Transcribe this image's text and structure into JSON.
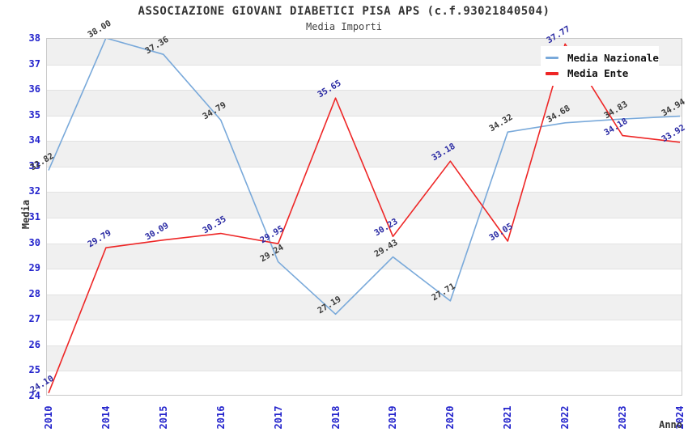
{
  "title": "ASSOCIAZIONE GIOVANI DIABETICI PISA APS (c.f.93021840504)",
  "subtitle": "Media Importi",
  "colors": {
    "background": "#ffffff",
    "band_gray": "#f0f0f0",
    "gridline": "#e2e2e2",
    "plot_border": "#c9c9c9",
    "tick_label_blue": "#2323cc",
    "title_gray": "#333333",
    "series_nazionale": "#79a9da",
    "series_ente": "#ee2626",
    "label_nazionale": "#3a3a3a",
    "label_ente": "#2929a3"
  },
  "chart_data": {
    "type": "line",
    "title": "ASSOCIAZIONE GIOVANI DIABETICI PISA APS (c.f.93021840504)",
    "subtitle": "Media Importi",
    "xlabel": "Anno",
    "ylabel": "Media",
    "categories": [
      "2010",
      "2014",
      "2015",
      "2016",
      "2017",
      "2018",
      "2019",
      "2020",
      "2021",
      "2022",
      "2023",
      "2024"
    ],
    "series": [
      {
        "name": "Media Nazionale",
        "color": "#79a9da",
        "label_color": "#3a3a3a",
        "values": [
          32.82,
          38.0,
          37.36,
          34.79,
          29.24,
          27.19,
          29.43,
          27.71,
          34.32,
          34.68,
          34.83,
          34.94
        ]
      },
      {
        "name": "Media Ente",
        "color": "#ee2626",
        "label_color": "#2929a3",
        "values": [
          24.1,
          29.79,
          30.09,
          30.35,
          29.95,
          35.65,
          30.23,
          33.18,
          30.05,
          37.77,
          34.18,
          33.92
        ]
      }
    ],
    "ylim": [
      24,
      38
    ],
    "ytick_step": 1,
    "grid": "horizontal-bands-alternating",
    "legend_position": "top-right",
    "point_labels": "values shown rotated at each point, 2 decimals",
    "tick_label_rotation_x": -90
  }
}
